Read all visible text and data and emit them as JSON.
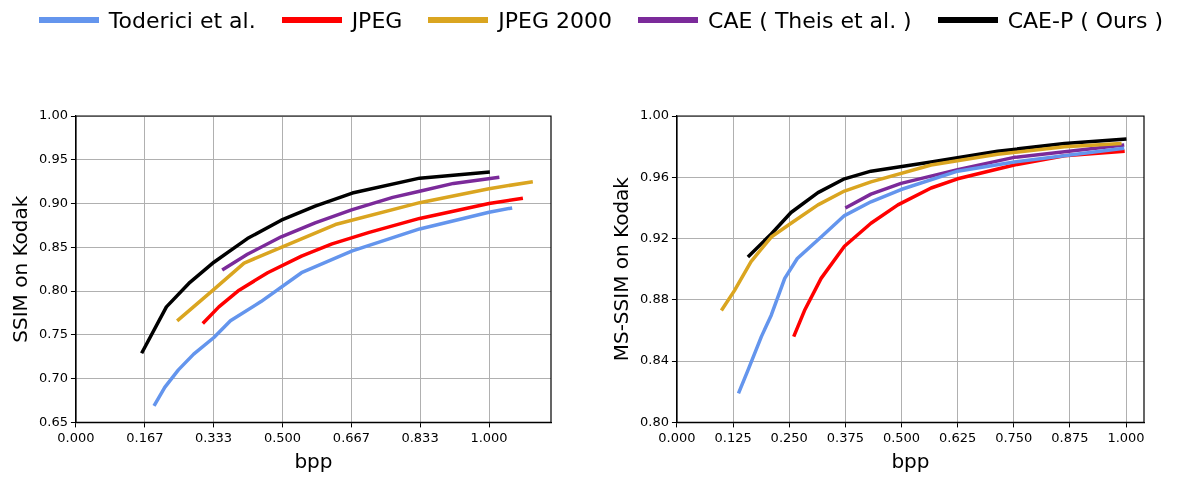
{
  "chart_data": [
    {
      "type": "line",
      "xlabel": "bpp",
      "ylabel": "SSIM on Kodak",
      "xlim": [
        0,
        1.15
      ],
      "ylim": [
        0.65,
        1.0
      ],
      "xticks": [
        {
          "value": 0,
          "label": "0.000"
        },
        0.167,
        0.333,
        {
          "value": 0.5,
          "label": "0.500"
        },
        0.667,
        0.833,
        {
          "value": 1,
          "label": "1.000"
        }
      ],
      "yticks": [
        0.65,
        {
          "value": 0.7,
          "label": "0.70"
        },
        0.75,
        {
          "value": 0.8,
          "label": "0.80"
        },
        0.85,
        {
          "value": 0.9,
          "label": "0.90"
        },
        0.95,
        {
          "value": 1,
          "label": "1.00"
        }
      ],
      "grid": true,
      "legend": "top",
      "line_style": "solid",
      "marker": "none",
      "series": [
        {
          "name": "Toderici et al.",
          "color": "#6495ed",
          "x": [
            0.189,
            0.215,
            0.248,
            0.285,
            0.334,
            0.374,
            0.448,
            0.546,
            0.669,
            0.832,
            1.0,
            1.056
          ],
          "values": [
            0.669,
            0.69,
            0.71,
            0.728,
            0.747,
            0.766,
            0.788,
            0.821,
            0.846,
            0.871,
            0.89,
            0.895
          ]
        },
        {
          "name": "JPEG",
          "color": "#ff0000",
          "x": [
            0.307,
            0.346,
            0.395,
            0.464,
            0.546,
            0.62,
            0.71,
            0.832,
            1.0,
            1.082
          ],
          "values": [
            0.763,
            0.782,
            0.801,
            0.821,
            0.84,
            0.854,
            0.867,
            0.883,
            0.9,
            0.906
          ]
        },
        {
          "name": "JPEG 2000",
          "color": "#daa520",
          "x": [
            0.245,
            0.334,
            0.407,
            0.497,
            0.628,
            0.832,
            1.0,
            1.106
          ],
          "values": [
            0.766,
            0.802,
            0.832,
            0.85,
            0.876,
            0.901,
            0.917,
            0.925
          ]
        },
        {
          "name": "CAE ( Theis et al. )",
          "color": "#7b2a9a",
          "x": [
            0.354,
            0.415,
            0.497,
            0.579,
            0.669,
            0.767,
            0.832,
            0.914,
            1.025
          ],
          "values": [
            0.824,
            0.842,
            0.862,
            0.878,
            0.893,
            0.907,
            0.914,
            0.923,
            0.93
          ]
        },
        {
          "name": "CAE-P ( Ours )",
          "color": "#000000",
          "x": [
            0.159,
            0.219,
            0.276,
            0.334,
            0.415,
            0.497,
            0.579,
            0.669,
            0.832,
            1.002
          ],
          "values": [
            0.729,
            0.782,
            0.81,
            0.833,
            0.86,
            0.881,
            0.897,
            0.912,
            0.929,
            0.936
          ]
        }
      ]
    },
    {
      "type": "line",
      "xlabel": "bpp",
      "ylabel": "MS-SSIM on Kodak",
      "xlim": [
        0,
        1.04
      ],
      "ylim": [
        0.8,
        1.0
      ],
      "xticks": [
        {
          "value": 0,
          "label": "0.000"
        },
        0.125,
        {
          "value": 0.25,
          "label": "0.250"
        },
        0.375,
        {
          "value": 0.5,
          "label": "0.500"
        },
        0.625,
        {
          "value": 0.75,
          "label": "0.750"
        },
        0.875,
        {
          "value": 1,
          "label": "1.000"
        }
      ],
      "yticks": [
        {
          "value": 0.8,
          "label": "0.80"
        },
        0.84,
        0.88,
        0.92,
        0.96,
        {
          "value": 1,
          "label": "1.00"
        }
      ],
      "grid": true,
      "line_style": "solid",
      "marker": "none",
      "series": [
        {
          "color": "#6495ed",
          "x": [
            0.137,
            0.158,
            0.188,
            0.21,
            0.24,
            0.268,
            0.321,
            0.373,
            0.432,
            0.499,
            0.625,
            0.751,
            0.996
          ],
          "values": [
            0.819,
            0.834,
            0.856,
            0.87,
            0.894,
            0.907,
            0.921,
            0.935,
            0.944,
            0.952,
            0.964,
            0.97,
            0.979
          ]
        },
        {
          "color": "#ff0000",
          "x": [
            0.26,
            0.284,
            0.321,
            0.373,
            0.432,
            0.492,
            0.566,
            0.625,
            0.751,
            0.863,
            0.997
          ],
          "values": [
            0.856,
            0.873,
            0.894,
            0.915,
            0.93,
            0.942,
            0.953,
            0.959,
            0.968,
            0.974,
            0.977
          ]
        },
        {
          "color": "#daa520",
          "x": [
            0.099,
            0.128,
            0.165,
            0.21,
            0.254,
            0.314,
            0.373,
            0.432,
            0.566,
            0.714,
            0.863,
            0.99
          ],
          "values": [
            0.873,
            0.886,
            0.905,
            0.921,
            0.93,
            0.942,
            0.951,
            0.957,
            0.968,
            0.975,
            0.98,
            0.982
          ]
        },
        {
          "color": "#7b2a9a",
          "x": [
            0.375,
            0.432,
            0.499,
            0.625,
            0.751,
            0.996
          ],
          "values": [
            0.94,
            0.949,
            0.956,
            0.965,
            0.973,
            0.981
          ]
        },
        {
          "color": "#000000",
          "x": [
            0.158,
            0.21,
            0.254,
            0.314,
            0.373,
            0.432,
            0.566,
            0.714,
            0.863,
            1.001
          ],
          "values": [
            0.908,
            0.923,
            0.937,
            0.95,
            0.959,
            0.964,
            0.97,
            0.977,
            0.982,
            0.985
          ]
        }
      ]
    }
  ]
}
